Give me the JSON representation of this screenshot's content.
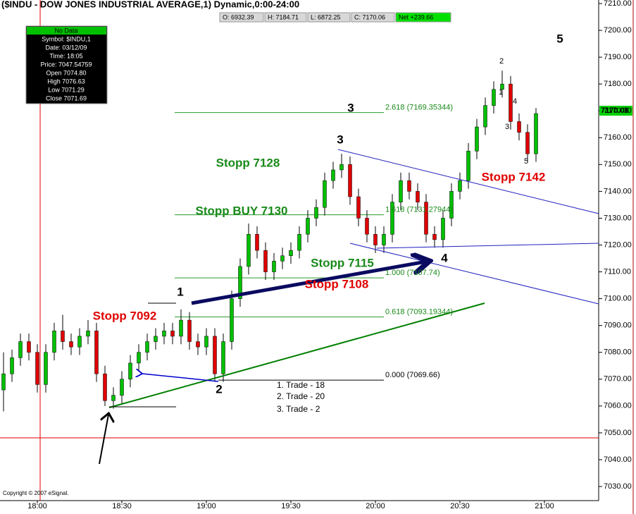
{
  "chart_data": {
    "type": "candlestick",
    "title": "($INDU - DOW JONES INDUSTRIAL AVERAGE,1) Dynamic,0:00-24:00",
    "quote": [
      "O: 6932.39",
      "H: 7184.71",
      "L: 6872.25",
      "C: 7170.06",
      "Net +239.66"
    ],
    "x": [
      "17:48",
      "17:51",
      "17:54",
      "17:57",
      "18:00",
      "18:03",
      "18:06",
      "18:09",
      "18:12",
      "18:15",
      "18:18",
      "18:21",
      "18:24",
      "18:27",
      "18:30",
      "18:33",
      "18:36",
      "18:39",
      "18:42",
      "18:45",
      "18:48",
      "18:51",
      "18:54",
      "18:57",
      "19:00",
      "19:03",
      "19:06",
      "19:09",
      "19:12",
      "19:15",
      "19:18",
      "19:21",
      "19:24",
      "19:27",
      "19:30",
      "19:33",
      "19:36",
      "19:39",
      "19:42",
      "19:45",
      "19:48",
      "19:51",
      "19:54",
      "19:57",
      "20:00",
      "20:03",
      "20:06",
      "20:09",
      "20:12",
      "20:15",
      "20:18",
      "20:21",
      "20:24",
      "20:27",
      "20:30",
      "20:33",
      "20:36",
      "20:39",
      "20:42",
      "20:45",
      "20:48",
      "20:51",
      "20:54",
      "20:57"
    ],
    "open": [
      7066,
      7072,
      7078,
      7084,
      7080,
      7068,
      7080,
      7088,
      7084,
      7082,
      7086,
      7088,
      7072,
      7062,
      7064,
      7070,
      7076,
      7080,
      7084,
      7086,
      7088,
      7086,
      7092,
      7084,
      7082,
      7086,
      7072,
      7084,
      7100,
      7112,
      7124,
      7118,
      7110,
      7114,
      7116,
      7118,
      7124,
      7130,
      7134,
      7144,
      7148,
      7150,
      7138,
      7130,
      7124,
      7120,
      7124,
      7136,
      7144,
      7140,
      7136,
      7124,
      7122,
      7130,
      7140,
      7144,
      7155,
      7164,
      7172,
      7178,
      7180,
      7166,
      7162,
      7154
    ],
    "high": [
      7080,
      7081,
      7087,
      7087,
      7083,
      7083,
      7091,
      7094,
      7087,
      7089,
      7092,
      7091,
      7075,
      7067,
      7073,
      7079,
      7083,
      7087,
      7089,
      7091,
      7091,
      7096,
      7095,
      7087,
      7089,
      7089,
      7087,
      7103,
      7115,
      7128,
      7127,
      7121,
      7117,
      7119,
      7121,
      7127,
      7133,
      7137,
      7147,
      7151,
      7154,
      7153,
      7141,
      7133,
      7127,
      7127,
      7139,
      7147,
      7147,
      7143,
      7139,
      7127,
      7133,
      7143,
      7147,
      7158,
      7167,
      7175,
      7181,
      7185,
      7183,
      7169,
      7165,
      7171
    ],
    "low": [
      7058,
      7069,
      7075,
      7077,
      7065,
      7065,
      7077,
      7081,
      7079,
      7079,
      7083,
      7069,
      7060,
      7059,
      7061,
      7067,
      7073,
      7077,
      7081,
      7083,
      7083,
      7083,
      7081,
      7079,
      7079,
      7069,
      7069,
      7081,
      7097,
      7109,
      7115,
      7107,
      7107,
      7111,
      7113,
      7115,
      7121,
      7127,
      7131,
      7141,
      7145,
      7135,
      7127,
      7121,
      7117,
      7117,
      7121,
      7133,
      7137,
      7133,
      7121,
      7119,
      7119,
      7127,
      7137,
      7141,
      7152,
      7161,
      7169,
      7175,
      7163,
      7159,
      7151,
      7151
    ],
    "close": [
      7072,
      7078,
      7084,
      7080,
      7068,
      7080,
      7088,
      7084,
      7082,
      7086,
      7088,
      7072,
      7062,
      7064,
      7070,
      7076,
      7080,
      7084,
      7086,
      7088,
      7086,
      7092,
      7084,
      7082,
      7086,
      7072,
      7084,
      7100,
      7112,
      7124,
      7118,
      7110,
      7114,
      7116,
      7118,
      7124,
      7130,
      7134,
      7144,
      7148,
      7150,
      7138,
      7130,
      7124,
      7120,
      7124,
      7136,
      7144,
      7140,
      7136,
      7124,
      7122,
      7130,
      7140,
      7144,
      7155,
      7164,
      7172,
      7178,
      7180,
      7166,
      7162,
      7154,
      7169
    ],
    "up_color": "#00c000",
    "down_color": "#e00000",
    "ylim": [
      7030,
      7210
    ],
    "yticks": [
      {
        "value": 7030,
        "label": "7030.00"
      },
      {
        "value": 7040,
        "label": "7040.00"
      },
      {
        "value": 7050,
        "label": "7050.00"
      },
      {
        "value": 7060,
        "label": "7060.00"
      },
      {
        "value": 7070,
        "label": "7070.00"
      },
      {
        "value": 7080,
        "label": "7080.00"
      },
      {
        "value": 7090,
        "label": "7090.00"
      },
      {
        "value": 7100,
        "label": "7100.00"
      },
      {
        "value": 7110,
        "label": "7110.00"
      },
      {
        "value": 7120,
        "label": "7120.00"
      },
      {
        "value": 7130,
        "label": "7130.00"
      },
      {
        "value": 7140,
        "label": "7140.00"
      },
      {
        "value": 7150,
        "label": "7150.00"
      },
      {
        "value": 7160,
        "label": "7160.00"
      },
      {
        "value": 7170,
        "label": "7170.00"
      },
      {
        "value": 7180,
        "label": "7180.00"
      },
      {
        "value": 7190,
        "label": "7190.00"
      },
      {
        "value": 7200,
        "label": "7200.00"
      },
      {
        "value": 7210,
        "label": "7210.00"
      }
    ],
    "xticks": [
      "18:00",
      "18:30",
      "19:00",
      "19:30",
      "20:00",
      "20:30",
      "21:00"
    ],
    "last_price": 7170.06,
    "fib_levels": [
      {
        "value": 7169.35344,
        "label": "2.618 (7169.35344)"
      },
      {
        "value": 7131.27944,
        "label": "1.618 (7131.27944)"
      },
      {
        "value": 7107.74,
        "label": "1.000 (7107.74)"
      },
      {
        "value": 7093.19344,
        "label": "0.618 (7093.19344)"
      },
      {
        "value": 7069.66,
        "label": "0.000 (7069.66)"
      }
    ],
    "annotations": [
      "Stopp 7128",
      "Stopp BUY 7130",
      "Stopp 7115",
      "Stopp 7108",
      "Stopp 7092",
      "Stopp 7142",
      "1",
      "2",
      "3",
      "3",
      "4",
      "5",
      "2",
      "1",
      "4",
      "3",
      "5",
      "1. Trade - 18",
      "2. Trade - 20",
      "3. Trade - 2"
    ],
    "data_window": [
      "No Data",
      "Symbol: $INDU,1",
      "Date: 03/12/09",
      "Time: 18:05",
      "Price: 7047.54759",
      "Open 7074.80",
      "High 7076.63",
      "Low 7071.29",
      "Close 7071.69"
    ],
    "copyright": "Copyright © 2007 eSignal."
  }
}
